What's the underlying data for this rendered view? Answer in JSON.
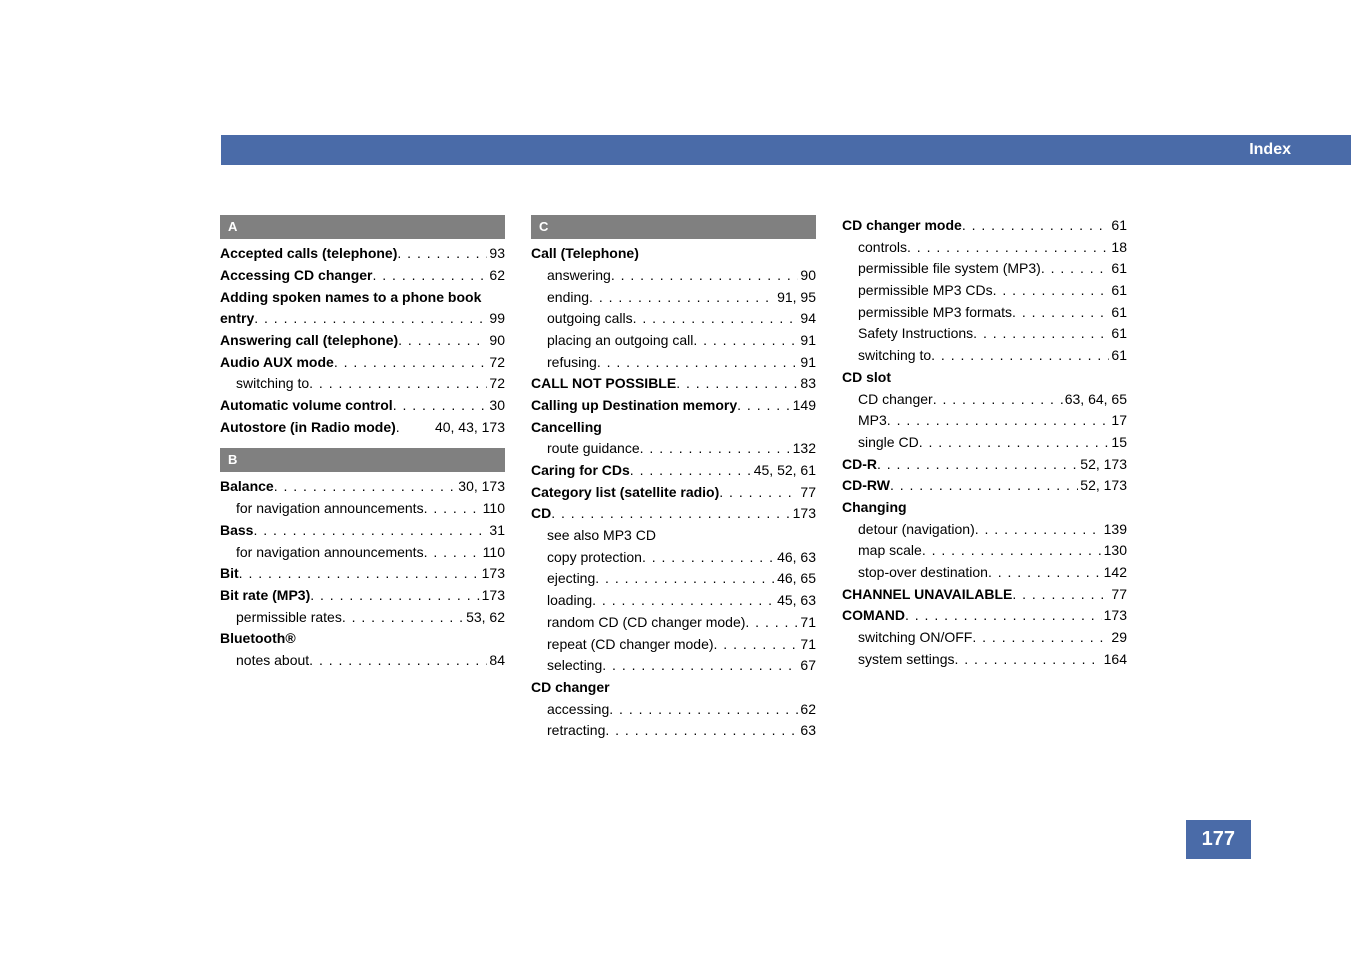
{
  "header_title": "Index",
  "page_number": "177",
  "dot_fill": ". . . . . . . . . . . . . . . . . . . . . . . . . . . . . . . . . . . . . . . . . .",
  "columns": [
    {
      "sections": [
        {
          "header": "A",
          "entries": [
            {
              "label": "Accepted calls (telephone)",
              "pages": "93",
              "bold": true,
              "sub": false
            },
            {
              "label": "Accessing CD changer",
              "pages": "62",
              "bold": true,
              "sub": false
            },
            {
              "label": "Adding spoken names to a phone book",
              "pages": "",
              "bold": true,
              "sub": false,
              "nowrap_off": true
            },
            {
              "label": "entry",
              "pages": "99",
              "bold": true,
              "sub": false
            },
            {
              "label": "Answering call (telephone)",
              "pages": "90",
              "bold": true,
              "sub": false
            },
            {
              "label": "Audio AUX mode",
              "pages": "72",
              "bold": true,
              "sub": false
            },
            {
              "label": "switching to",
              "pages": "72",
              "bold": false,
              "sub": true
            },
            {
              "label": "Automatic volume control",
              "pages": "30",
              "bold": true,
              "sub": false
            },
            {
              "label": "Autostore (in Radio mode)",
              "pages": "40, 43, 173",
              "bold": true,
              "sub": false,
              "tight": true
            }
          ]
        },
        {
          "header": "B",
          "entries": [
            {
              "label": "Balance",
              "pages": "30, 173",
              "bold": true,
              "sub": false
            },
            {
              "label": "for navigation announcements",
              "pages": "110",
              "bold": false,
              "sub": true
            },
            {
              "label": "Bass",
              "pages": "31",
              "bold": true,
              "sub": false
            },
            {
              "label": "for navigation announcements",
              "pages": "110",
              "bold": false,
              "sub": true
            },
            {
              "label": "Bit",
              "pages": "173",
              "bold": true,
              "sub": false
            },
            {
              "label": "Bit rate (MP3)",
              "pages": "173",
              "bold": true,
              "sub": false
            },
            {
              "label": "permissible rates",
              "pages": "53, 62",
              "bold": false,
              "sub": true
            },
            {
              "label": "Bluetooth®",
              "pages": "",
              "bold": true,
              "sub": false
            },
            {
              "label": "notes about",
              "pages": "84",
              "bold": false,
              "sub": true
            }
          ]
        }
      ]
    },
    {
      "sections": [
        {
          "header": "C",
          "entries": [
            {
              "label": "Call (Telephone)",
              "pages": "",
              "bold": true,
              "sub": false
            },
            {
              "label": "answering",
              "pages": "90",
              "bold": false,
              "sub": true
            },
            {
              "label": "ending",
              "pages": "91, 95",
              "bold": false,
              "sub": true
            },
            {
              "label": "outgoing calls",
              "pages": "94",
              "bold": false,
              "sub": true
            },
            {
              "label": "placing an outgoing call",
              "pages": "91",
              "bold": false,
              "sub": true
            },
            {
              "label": "refusing",
              "pages": "91",
              "bold": false,
              "sub": true
            },
            {
              "label": "CALL NOT POSSIBLE",
              "pages": "83",
              "bold": true,
              "sub": false
            },
            {
              "label": "Calling up Destination memory",
              "pages": "149",
              "bold": true,
              "sub": false
            },
            {
              "label": "Cancelling",
              "pages": "",
              "bold": true,
              "sub": false
            },
            {
              "label": "route guidance",
              "pages": "132",
              "bold": false,
              "sub": true
            },
            {
              "label": "Caring for CDs",
              "pages": "45, 52, 61",
              "bold": true,
              "sub": false
            },
            {
              "label": "Category list (satellite radio)",
              "pages": "77",
              "bold": true,
              "sub": false
            },
            {
              "label": "CD",
              "pages": "173",
              "bold": true,
              "sub": false
            },
            {
              "label": "see also MP3 CD",
              "pages": "",
              "bold": false,
              "sub": true
            },
            {
              "label": "copy protection",
              "pages": "46, 63",
              "bold": false,
              "sub": true
            },
            {
              "label": "ejecting",
              "pages": "46, 65",
              "bold": false,
              "sub": true
            },
            {
              "label": "loading",
              "pages": "45, 63",
              "bold": false,
              "sub": true
            },
            {
              "label": "random CD (CD changer mode)",
              "pages": "71",
              "bold": false,
              "sub": true
            },
            {
              "label": "repeat (CD changer mode)",
              "pages": "71",
              "bold": false,
              "sub": true
            },
            {
              "label": "selecting",
              "pages": "67",
              "bold": false,
              "sub": true
            },
            {
              "label": "CD changer",
              "pages": "",
              "bold": true,
              "sub": false
            },
            {
              "label": "accessing",
              "pages": "62",
              "bold": false,
              "sub": true
            },
            {
              "label": "retracting",
              "pages": "63",
              "bold": false,
              "sub": true
            }
          ]
        }
      ]
    },
    {
      "sections": [
        {
          "header": "",
          "entries": [
            {
              "label": "CD changer mode",
              "pages": "61",
              "bold": true,
              "sub": false
            },
            {
              "label": "controls",
              "pages": "18",
              "bold": false,
              "sub": true
            },
            {
              "label": "permissible file system (MP3)",
              "pages": "61",
              "bold": false,
              "sub": true
            },
            {
              "label": "permissible MP3 CDs",
              "pages": "61",
              "bold": false,
              "sub": true
            },
            {
              "label": "permissible MP3 formats",
              "pages": "61",
              "bold": false,
              "sub": true
            },
            {
              "label": "Safety Instructions",
              "pages": "61",
              "bold": false,
              "sub": true
            },
            {
              "label": "switching to",
              "pages": "61",
              "bold": false,
              "sub": true
            },
            {
              "label": "CD slot",
              "pages": "",
              "bold": true,
              "sub": false
            },
            {
              "label": "CD changer",
              "pages": "63, 64, 65",
              "bold": false,
              "sub": true
            },
            {
              "label": "MP3",
              "pages": "17",
              "bold": false,
              "sub": true
            },
            {
              "label": "single CD",
              "pages": "15",
              "bold": false,
              "sub": true
            },
            {
              "label": "CD-R",
              "pages": "52, 173",
              "bold": true,
              "sub": false
            },
            {
              "label": "CD-RW",
              "pages": "52, 173",
              "bold": true,
              "sub": false
            },
            {
              "label": "Changing",
              "pages": "",
              "bold": true,
              "sub": false
            },
            {
              "label": "detour (navigation)",
              "pages": "139",
              "bold": false,
              "sub": true
            },
            {
              "label": "map scale",
              "pages": "130",
              "bold": false,
              "sub": true
            },
            {
              "label": "stop-over destination",
              "pages": "142",
              "bold": false,
              "sub": true
            },
            {
              "label": "CHANNEL UNAVAILABLE",
              "pages": "77",
              "bold": true,
              "sub": false
            },
            {
              "label": "COMAND",
              "pages": "173",
              "bold": true,
              "sub": false
            },
            {
              "label": "switching ON/OFF",
              "pages": "29",
              "bold": false,
              "sub": true
            },
            {
              "label": "system settings",
              "pages": "164",
              "bold": false,
              "sub": true
            }
          ]
        }
      ]
    }
  ]
}
